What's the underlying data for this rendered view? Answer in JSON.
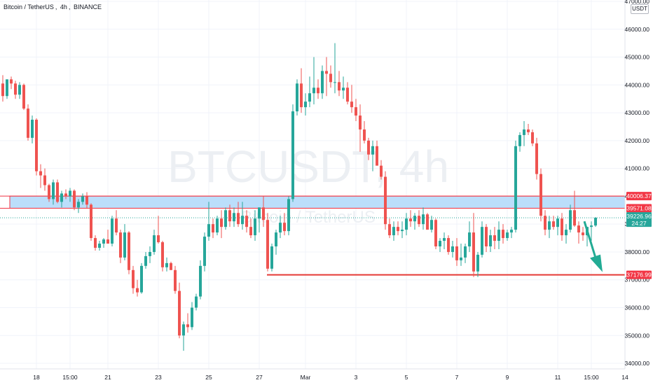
{
  "header": {
    "symbol": "Bitcoin / TetherUS",
    "interval": "4h",
    "exchange": "BINANCE",
    "currency_badge": "USDT"
  },
  "watermark": {
    "ticker": "BTCUSDT, 4h",
    "description": "Bitcoin / TetherUS"
  },
  "colors": {
    "up": "#26a69a",
    "down": "#ef5350",
    "zone_fill": "#bbdefb",
    "zone_border": "#f23645",
    "target_line": "#e53935",
    "arrow": "#22ab94",
    "grid": "#f0f3fa",
    "price_tag": "#26a69a",
    "level_tag": "#f23645"
  },
  "chart_data": {
    "type": "candlestick",
    "title": "Bitcoin / TetherUS, 4h, BINANCE",
    "xlabel": "",
    "ylabel": "",
    "ylim": [
      33800,
      47050
    ],
    "grid": true,
    "y_ticks": [
      "34000.00",
      "35000.00",
      "36000.00",
      "37000.00",
      "38000.00",
      "39000.00",
      "40000.00",
      "41000.00",
      "42000.00",
      "43000.00",
      "44000.00",
      "45000.00",
      "46000.00",
      "47000.00"
    ],
    "x_ticks": [
      {
        "label": "18",
        "index": 8
      },
      {
        "label": "15:00",
        "index": 16
      },
      {
        "label": "21",
        "index": 25
      },
      {
        "label": "23",
        "index": 37
      },
      {
        "label": "25",
        "index": 49
      },
      {
        "label": "27",
        "index": 61
      },
      {
        "label": "Mar",
        "index": 72
      },
      {
        "label": "3",
        "index": 84
      },
      {
        "label": "5",
        "index": 96
      },
      {
        "label": "7",
        "index": 108
      },
      {
        "label": "9",
        "index": 120
      },
      {
        "label": "11",
        "index": 132
      },
      {
        "label": "15:00",
        "index": 140
      },
      {
        "label": "14",
        "index": 148
      }
    ],
    "candles": [
      [
        44050,
        44350,
        43400,
        43600
      ],
      [
        43600,
        44200,
        43500,
        44200
      ],
      [
        44200,
        44300,
        43850,
        44050
      ],
      [
        44050,
        44150,
        43500,
        43650
      ],
      [
        43650,
        44100,
        43500,
        44000
      ],
      [
        44000,
        44050,
        43100,
        43150
      ],
      [
        43150,
        43300,
        42000,
        42100
      ],
      [
        42100,
        42900,
        41900,
        42750
      ],
      [
        42750,
        42800,
        40750,
        40900
      ],
      [
        40900,
        41150,
        40300,
        40750
      ],
      [
        40750,
        41000,
        40200,
        40400
      ],
      [
        40400,
        40450,
        39800,
        39900
      ],
      [
        39900,
        40600,
        39700,
        40500
      ],
      [
        40500,
        40600,
        39750,
        39800
      ],
      [
        39800,
        40200,
        39600,
        40100
      ],
      [
        40100,
        40250,
        39900,
        40000
      ],
      [
        40000,
        40300,
        39800,
        40200
      ],
      [
        40200,
        40250,
        39500,
        39600
      ],
      [
        39600,
        39900,
        39400,
        39800
      ],
      [
        39800,
        40100,
        39700,
        40000
      ],
      [
        40000,
        40150,
        39550,
        39700
      ],
      [
        39700,
        39750,
        38400,
        38500
      ],
      [
        38500,
        38600,
        38050,
        38150
      ],
      [
        38150,
        38400,
        38050,
        38300
      ],
      [
        38300,
        38500,
        38150,
        38450
      ],
      [
        38450,
        38800,
        38300,
        38300
      ],
      [
        38300,
        39300,
        38200,
        39200
      ],
      [
        39200,
        39500,
        38600,
        38700
      ],
      [
        38700,
        38800,
        37600,
        37800
      ],
      [
        37800,
        39000,
        37700,
        38700
      ],
      [
        38700,
        38750,
        37200,
        37350
      ],
      [
        37350,
        37500,
        36500,
        36700
      ],
      [
        36700,
        37000,
        36400,
        36550
      ],
      [
        36550,
        37600,
        36500,
        37500
      ],
      [
        37500,
        38000,
        37400,
        37850
      ],
      [
        37850,
        38200,
        37600,
        38000
      ],
      [
        38000,
        38800,
        37900,
        38600
      ],
      [
        38600,
        39300,
        38300,
        38350
      ],
      [
        38350,
        38400,
        37300,
        37450
      ],
      [
        37450,
        37800,
        37300,
        37600
      ],
      [
        37600,
        37650,
        37400,
        37350
      ],
      [
        37350,
        37500,
        36500,
        36600
      ],
      [
        36600,
        36900,
        34900,
        35000
      ],
      [
        35000,
        35500,
        34450,
        35400
      ],
      [
        35400,
        35800,
        35100,
        35300
      ],
      [
        35300,
        36200,
        35200,
        36000
      ],
      [
        36000,
        36500,
        35900,
        36400
      ],
      [
        36400,
        37700,
        36300,
        37500
      ],
      [
        37500,
        38700,
        37300,
        38550
      ],
      [
        38550,
        39800,
        38400,
        39000
      ],
      [
        39000,
        39200,
        38500,
        38700
      ],
      [
        38700,
        39300,
        38600,
        39200
      ],
      [
        39200,
        39500,
        38500,
        38900
      ],
      [
        38900,
        39600,
        38800,
        39500
      ],
      [
        39500,
        39700,
        38900,
        39100
      ],
      [
        39100,
        39600,
        38900,
        39400
      ],
      [
        39400,
        39800,
        38900,
        39000
      ],
      [
        39000,
        39800,
        38800,
        39300
      ],
      [
        39300,
        39500,
        38700,
        38900
      ],
      [
        38900,
        39200,
        38500,
        38600
      ],
      [
        38600,
        39500,
        38400,
        39200
      ],
      [
        39200,
        39600,
        38700,
        39600
      ],
      [
        39600,
        40000,
        38900,
        39150
      ],
      [
        39150,
        39400,
        37300,
        37400
      ],
      [
        37400,
        38300,
        37300,
        38200
      ],
      [
        38200,
        38800,
        37900,
        38700
      ],
      [
        38700,
        39300,
        38500,
        39050
      ],
      [
        39050,
        39400,
        38600,
        38750
      ],
      [
        38750,
        40000,
        38600,
        39900
      ],
      [
        39900,
        43300,
        39800,
        43050
      ],
      [
        43050,
        44200,
        42900,
        44050
      ],
      [
        44050,
        44600,
        43000,
        43200
      ],
      [
        43200,
        43700,
        42900,
        43400
      ],
      [
        43400,
        44300,
        43200,
        43700
      ],
      [
        43700,
        45000,
        43300,
        43900
      ],
      [
        43900,
        44200,
        43500,
        43700
      ],
      [
        43700,
        44700,
        43500,
        44500
      ],
      [
        44500,
        45000,
        43600,
        44400
      ],
      [
        44400,
        44700,
        43900,
        44100
      ],
      [
        44100,
        45500,
        43700,
        44100
      ],
      [
        44100,
        44500,
        43600,
        43800
      ],
      [
        43800,
        44300,
        43500,
        43900
      ],
      [
        43900,
        44100,
        43300,
        43400
      ],
      [
        43400,
        44000,
        43000,
        43200
      ],
      [
        43200,
        43500,
        42700,
        42900
      ],
      [
        42900,
        43300,
        41600,
        42400
      ],
      [
        42400,
        42700,
        41900,
        42000
      ],
      [
        42000,
        42100,
        41300,
        41500
      ],
      [
        41500,
        42000,
        40900,
        41800
      ],
      [
        41800,
        42000,
        41200,
        41100
      ],
      [
        41100,
        41300,
        40600,
        40700
      ],
      [
        40700,
        40900,
        38800,
        39000
      ],
      [
        39000,
        39200,
        38500,
        38600
      ],
      [
        38600,
        39100,
        38400,
        38900
      ],
      [
        38900,
        39100,
        38600,
        38750
      ],
      [
        38750,
        39100,
        38500,
        38800
      ],
      [
        38800,
        39400,
        38600,
        39200
      ],
      [
        39200,
        39500,
        38900,
        39100
      ],
      [
        39100,
        39400,
        38800,
        39300
      ],
      [
        39300,
        39500,
        38900,
        39000
      ],
      [
        39000,
        39600,
        38800,
        39350
      ],
      [
        39350,
        39400,
        38800,
        38800
      ],
      [
        38800,
        39300,
        38700,
        39150
      ],
      [
        39150,
        39200,
        38100,
        38200
      ],
      [
        38200,
        38500,
        38000,
        38400
      ],
      [
        38400,
        38700,
        38100,
        38500
      ],
      [
        38500,
        38600,
        37900,
        38000
      ],
      [
        38000,
        38400,
        37800,
        38200
      ],
      [
        38200,
        38500,
        37500,
        37700
      ],
      [
        37700,
        38300,
        37500,
        37800
      ],
      [
        37800,
        38300,
        37600,
        38200
      ],
      [
        38200,
        39100,
        38000,
        38700
      ],
      [
        38700,
        39400,
        37100,
        37300
      ],
      [
        37300,
        38000,
        37100,
        37900
      ],
      [
        37900,
        39100,
        37800,
        38900
      ],
      [
        38900,
        39000,
        38000,
        38200
      ],
      [
        38200,
        38800,
        38000,
        38600
      ],
      [
        38600,
        38900,
        38100,
        38400
      ],
      [
        38400,
        39100,
        38100,
        38800
      ],
      [
        38800,
        39000,
        38300,
        38500
      ],
      [
        38500,
        38800,
        38400,
        38700
      ],
      [
        38700,
        38900,
        38500,
        38800
      ],
      [
        38800,
        42000,
        38700,
        41800
      ],
      [
        41800,
        42300,
        41600,
        42200
      ],
      [
        42200,
        42700,
        41800,
        42400
      ],
      [
        42400,
        42600,
        42200,
        42300
      ],
      [
        42300,
        42400,
        41800,
        41900
      ],
      [
        41900,
        42100,
        40600,
        40800
      ],
      [
        40800,
        41000,
        39100,
        39300
      ],
      [
        39300,
        39500,
        38600,
        38800
      ],
      [
        38800,
        39300,
        38500,
        39100
      ],
      [
        39100,
        39300,
        38800,
        38900
      ],
      [
        38900,
        39300,
        38600,
        39200
      ],
      [
        39200,
        39400,
        38400,
        38600
      ],
      [
        38600,
        39000,
        38300,
        38800
      ],
      [
        38800,
        39700,
        38700,
        39500
      ],
      [
        39500,
        40200,
        38900,
        38950
      ],
      [
        38950,
        39100,
        38300,
        38700
      ],
      [
        38700,
        38900,
        38400,
        38600
      ],
      [
        38600,
        38900,
        38200,
        38900
      ],
      [
        38900,
        39100,
        38400,
        38950
      ],
      [
        38950,
        39250,
        38900,
        39230
      ]
    ],
    "levels": [
      {
        "name": "resistance-top",
        "price": 40006.37,
        "label": "40006.37"
      },
      {
        "name": "resistance-bottom",
        "price": 39571.08,
        "label": "39571.08"
      },
      {
        "name": "target",
        "price": 37176.99,
        "label": "37176.99"
      }
    ],
    "last_price": {
      "price": 39226.96,
      "label": "39226.96",
      "countdown": "24:27"
    },
    "annotation": "down arrow from current price toward 37176.99 target"
  }
}
